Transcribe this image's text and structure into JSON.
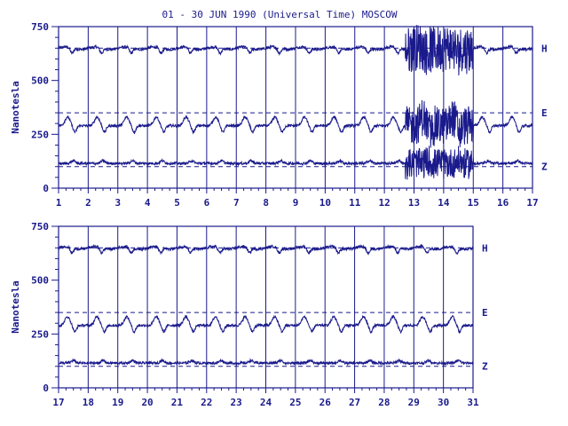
{
  "title": "01 - 30 JUN 1990 (Universal Time) MOSCOW",
  "colors": {
    "ink": "#1a1a8c",
    "background": "#ffffff"
  },
  "chart_data": [
    {
      "type": "line",
      "ylabel": "Nanotesla",
      "ylim": [
        0,
        750
      ],
      "yticks": [
        0,
        250,
        500,
        750
      ],
      "xlim": [
        1,
        17
      ],
      "xtick_labels": [
        "1",
        "2",
        "3",
        "4",
        "5",
        "6",
        "7",
        "8",
        "9",
        "10",
        "11",
        "12",
        "13",
        "14",
        "15",
        "16",
        "17"
      ],
      "vertical_day_gridlines": true,
      "series": [
        {
          "name": "H",
          "baseline": 650,
          "disturbed": [
            [
              12.7,
              15.0,
              110
            ]
          ]
        },
        {
          "name": "E",
          "baseline": 350,
          "disturbed": [
            [
              12.7,
              15.0,
              90
            ]
          ]
        },
        {
          "name": "Z",
          "baseline": 100,
          "disturbed": [
            [
              12.7,
              15.0,
              70
            ]
          ]
        }
      ]
    },
    {
      "type": "line",
      "ylabel": "Nanotesla",
      "ylim": [
        0,
        750
      ],
      "yticks": [
        0,
        250,
        500,
        750
      ],
      "xlim": [
        17,
        31
      ],
      "xtick_labels": [
        "17",
        "18",
        "19",
        "20",
        "21",
        "22",
        "23",
        "24",
        "25",
        "26",
        "27",
        "28",
        "29",
        "30",
        "31"
      ],
      "vertical_day_gridlines": true,
      "series": [
        {
          "name": "H",
          "baseline": 650,
          "disturbed": []
        },
        {
          "name": "E",
          "baseline": 350,
          "disturbed": []
        },
        {
          "name": "Z",
          "baseline": 100,
          "disturbed": []
        }
      ]
    }
  ]
}
